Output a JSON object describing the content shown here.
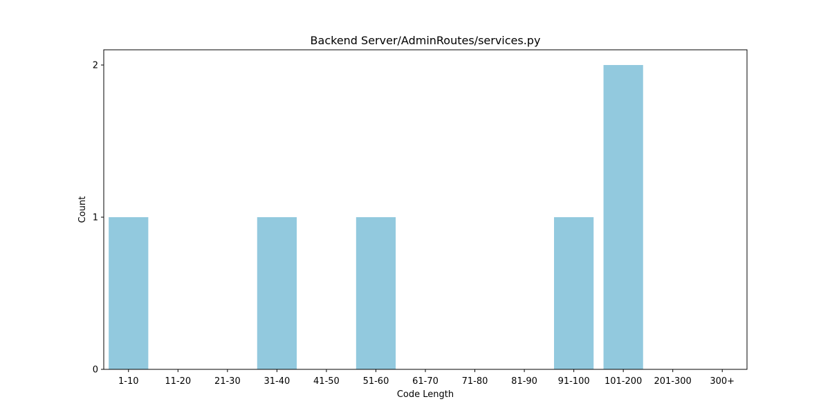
{
  "chart_data": {
    "type": "bar",
    "title": "Backend Server/AdminRoutes/services.py",
    "xlabel": "Code Length",
    "ylabel": "Count",
    "categories": [
      "1-10",
      "11-20",
      "21-30",
      "31-40",
      "41-50",
      "51-60",
      "61-70",
      "71-80",
      "81-90",
      "91-100",
      "101-200",
      "201-300",
      "300+"
    ],
    "values": [
      1,
      0,
      0,
      1,
      0,
      1,
      0,
      0,
      0,
      1,
      2,
      0,
      0
    ],
    "yticks": [
      "0",
      "1",
      "2"
    ],
    "ylim": [
      0,
      2.1
    ],
    "grid": false,
    "bar_color": "#92c9de"
  }
}
